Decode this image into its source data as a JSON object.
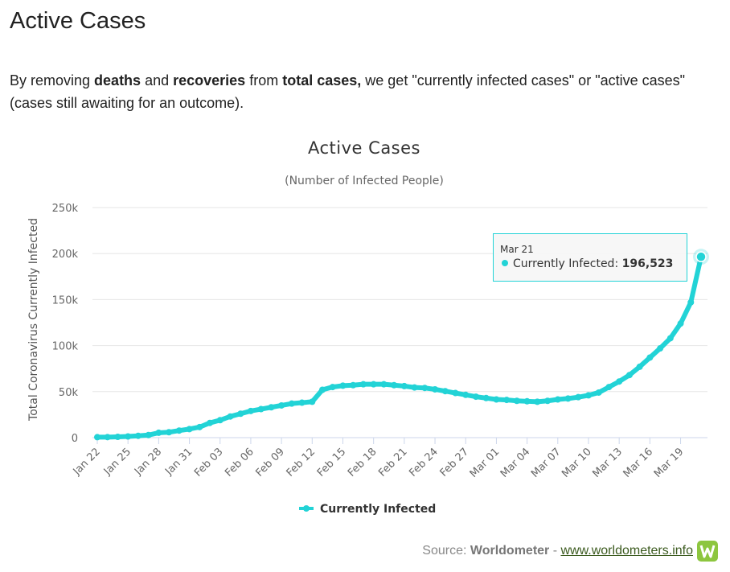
{
  "heading": "Active Cases",
  "intro": [
    "By removing ",
    "deaths",
    " and ",
    "recoveries",
    " from ",
    "total cases,",
    " we get \"currently infected cases\" or \"active cases\" (cases still awaiting for an outcome)."
  ],
  "source": [
    "Source: ",
    "Worldometer",
    " - ",
    "www.worldometers.info"
  ],
  "chart_data": {
    "type": "line",
    "title": "Active Cases",
    "subtitle": "(Number of Infected People)",
    "y_label": "Total Coronavirus Currently Infected",
    "categories": [
      "Jan 22",
      null,
      null,
      "Jan 25",
      null,
      null,
      "Jan 28",
      null,
      null,
      "Jan 31",
      null,
      null,
      "Feb 03",
      null,
      null,
      "Feb 06",
      null,
      null,
      "Feb 09",
      null,
      null,
      "Feb 12",
      null,
      null,
      "Feb 15",
      null,
      null,
      "Feb 18",
      null,
      null,
      "Feb 21",
      null,
      null,
      "Feb 24",
      null,
      null,
      "Feb 27",
      null,
      null,
      "Mar 01",
      null,
      null,
      "Mar 04",
      null,
      null,
      "Mar 07",
      null,
      null,
      "Mar 10",
      null,
      null,
      "Mar 13",
      null,
      null,
      "Mar 16",
      null,
      null,
      "Mar 19",
      null,
      null
    ],
    "series": [
      {
        "name": "Currently Infected",
        "color": "#22d3d6",
        "values": [
          510,
          600,
          870,
          1300,
          2000,
          2800,
          5300,
          5900,
          7700,
          9300,
          11500,
          16000,
          19000,
          23000,
          26000,
          29000,
          31000,
          33000,
          35000,
          37000,
          38000,
          39000,
          52000,
          55000,
          56500,
          57000,
          58000,
          58000,
          58000,
          57000,
          56000,
          54500,
          54000,
          52500,
          50500,
          48500,
          46500,
          44500,
          43000,
          41500,
          41000,
          40000,
          39500,
          39000,
          40000,
          41500,
          42500,
          44000,
          46000,
          49000,
          55000,
          61000,
          68000,
          77000,
          87000,
          97000,
          108000,
          124000,
          147000,
          196523
        ]
      }
    ],
    "ylim": [
      0,
      250000
    ],
    "yticks": [
      0,
      {
        "value": 50000,
        "label": "50k"
      },
      {
        "value": 100000,
        "label": "100k"
      },
      {
        "value": 150000,
        "label": "150k"
      },
      {
        "value": 200000,
        "label": "200k"
      },
      {
        "value": 250000,
        "label": "250k"
      }
    ],
    "grid": true,
    "legend": "bottom",
    "tooltip": {
      "title": "Mar 21",
      "label": "Currently Infected: ",
      "value": 196523,
      "value_label": "196,523"
    }
  }
}
